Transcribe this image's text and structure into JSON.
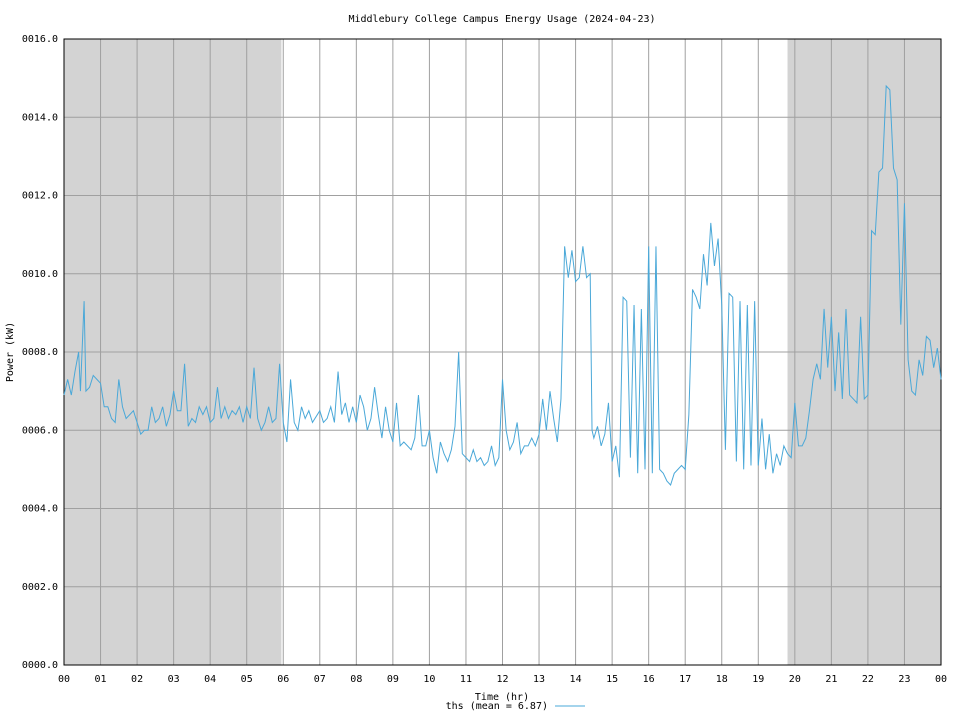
{
  "chart_data": {
    "type": "line",
    "title": "Middlebury College Campus Energy Usage (2024-04-23)",
    "x_label": "Time (hr)",
    "y_label": "Power (kW)",
    "xlim": [
      0,
      24
    ],
    "ylim": [
      0,
      16
    ],
    "grid": true,
    "legend": "bottom",
    "shaded_regions": [
      [
        0,
        5.95
      ],
      [
        19.8,
        24
      ]
    ],
    "shade_color": "#d3d3d3",
    "xticks": [
      {
        "value": 0,
        "label": "00"
      },
      {
        "value": 1,
        "label": "01"
      },
      {
        "value": 2,
        "label": "02"
      },
      {
        "value": 3,
        "label": "03"
      },
      {
        "value": 4,
        "label": "04"
      },
      {
        "value": 5,
        "label": "05"
      },
      {
        "value": 6,
        "label": "06"
      },
      {
        "value": 7,
        "label": "07"
      },
      {
        "value": 8,
        "label": "08"
      },
      {
        "value": 9,
        "label": "09"
      },
      10,
      11,
      12,
      13,
      14,
      15,
      16,
      17,
      18,
      19,
      20,
      21,
      22,
      23,
      {
        "value": 24,
        "label": "00"
      }
    ],
    "yticks": [
      {
        "value": 0,
        "label": "0000.0"
      },
      {
        "value": 2,
        "label": "0002.0"
      },
      {
        "value": 4,
        "label": "0004.0"
      },
      {
        "value": 6,
        "label": "0006.0"
      },
      {
        "value": 8,
        "label": "0008.0"
      },
      {
        "value": 10,
        "label": "0010.0"
      },
      {
        "value": 12,
        "label": "0012.0"
      },
      {
        "value": 14,
        "label": "0014.0"
      },
      {
        "value": 16,
        "label": "0016.0"
      }
    ],
    "x": [
      0,
      0.1,
      0.2,
      0.3,
      0.4,
      0.45,
      0.55,
      0.6,
      0.7,
      0.8,
      0.9,
      1.0,
      1.1,
      1.2,
      1.3,
      1.4,
      1.5,
      1.6,
      1.7,
      1.8,
      1.9,
      2.0,
      2.1,
      2.2,
      2.3,
      2.4,
      2.5,
      2.6,
      2.7,
      2.8,
      2.9,
      3.0,
      3.1,
      3.2,
      3.3,
      3.4,
      3.5,
      3.6,
      3.7,
      3.8,
      3.9,
      4.0,
      4.1,
      4.2,
      4.3,
      4.4,
      4.5,
      4.6,
      4.7,
      4.8,
      4.9,
      5.0,
      5.1,
      5.2,
      5.3,
      5.4,
      5.5,
      5.6,
      5.7,
      5.8,
      5.9,
      6.0,
      6.1,
      6.2,
      6.3,
      6.4,
      6.5,
      6.6,
      6.7,
      6.8,
      7.0,
      7.1,
      7.2,
      7.3,
      7.4,
      7.5,
      7.6,
      7.7,
      7.8,
      7.9,
      8.0,
      8.1,
      8.2,
      8.3,
      8.4,
      8.5,
      8.6,
      8.7,
      8.8,
      8.9,
      9.0,
      9.1,
      9.2,
      9.3,
      9.4,
      9.5,
      9.6,
      9.7,
      9.8,
      9.9,
      10.0,
      10.1,
      10.2,
      10.3,
      10.4,
      10.5,
      10.6,
      10.7,
      10.8,
      10.9,
      11.0,
      11.1,
      11.2,
      11.3,
      11.4,
      11.5,
      11.6,
      11.7,
      11.8,
      11.9,
      12.0,
      12.1,
      12.2,
      12.3,
      12.4,
      12.5,
      12.6,
      12.7,
      12.8,
      12.9,
      13.0,
      13.1,
      13.2,
      13.3,
      13.4,
      13.5,
      13.6,
      13.7,
      13.8,
      13.9,
      14.0,
      14.1,
      14.2,
      14.3,
      14.4,
      14.45,
      14.5,
      14.6,
      14.7,
      14.8,
      14.9,
      15.0,
      15.1,
      15.2,
      15.3,
      15.4,
      15.5,
      15.6,
      15.7,
      15.8,
      15.9,
      16.0,
      16.1,
      16.2,
      16.3,
      16.4,
      16.5,
      16.6,
      16.7,
      16.8,
      16.9,
      17.0,
      17.1,
      17.2,
      17.3,
      17.4,
      17.5,
      17.6,
      17.7,
      17.8,
      17.9,
      18.0,
      18.1,
      18.2,
      18.3,
      18.4,
      18.5,
      18.6,
      18.7,
      18.8,
      18.9,
      19.0,
      19.1,
      19.2,
      19.3,
      19.4,
      19.5,
      19.6,
      19.7,
      19.8,
      19.9,
      20.0,
      20.1,
      20.2,
      20.3,
      20.4,
      20.5,
      20.6,
      20.7,
      20.8,
      20.9,
      21.0,
      21.1,
      21.2,
      21.3,
      21.4,
      21.5,
      21.6,
      21.7,
      21.8,
      21.9,
      22.0,
      22.1,
      22.2,
      22.3,
      22.4,
      22.5,
      22.6,
      22.7,
      22.8,
      22.9,
      23.0,
      23.1,
      23.2,
      23.3,
      23.4,
      23.5,
      23.6,
      23.7,
      23.8,
      23.9,
      24.0
    ],
    "series": [
      {
        "name": "ths (mean = 6.87)",
        "color": "#4aa8d8",
        "values": [
          6.9,
          7.3,
          6.9,
          7.5,
          8.0,
          7.0,
          9.3,
          7.0,
          7.1,
          7.4,
          7.3,
          7.2,
          6.6,
          6.6,
          6.3,
          6.2,
          7.3,
          6.6,
          6.3,
          6.4,
          6.5,
          6.2,
          5.9,
          6.0,
          6.0,
          6.6,
          6.2,
          6.3,
          6.6,
          6.1,
          6.4,
          7.0,
          6.5,
          6.5,
          7.7,
          6.1,
          6.3,
          6.2,
          6.6,
          6.4,
          6.6,
          6.2,
          6.3,
          7.1,
          6.3,
          6.6,
          6.3,
          6.5,
          6.4,
          6.6,
          6.2,
          6.6,
          6.3,
          7.6,
          6.3,
          6.0,
          6.2,
          6.6,
          6.2,
          6.3,
          7.7,
          6.2,
          5.7,
          7.3,
          6.2,
          6.0,
          6.6,
          6.3,
          6.5,
          6.2,
          6.5,
          6.2,
          6.3,
          6.6,
          6.2,
          7.5,
          6.4,
          6.7,
          6.2,
          6.6,
          6.2,
          6.9,
          6.6,
          6.0,
          6.3,
          7.1,
          6.4,
          5.8,
          6.6,
          6.0,
          5.7,
          6.7,
          5.6,
          5.7,
          5.6,
          5.5,
          5.8,
          6.9,
          5.6,
          5.6,
          6.0,
          5.3,
          4.9,
          5.7,
          5.4,
          5.2,
          5.5,
          6.1,
          8.0,
          5.4,
          5.3,
          5.2,
          5.5,
          5.2,
          5.3,
          5.1,
          5.2,
          5.6,
          5.1,
          5.3,
          7.3,
          6.0,
          5.5,
          5.7,
          6.2,
          5.4,
          5.6,
          5.6,
          5.8,
          5.6,
          5.9,
          6.8,
          6.0,
          7.0,
          6.3,
          5.7,
          6.8,
          10.7,
          9.9,
          10.6,
          9.8,
          9.9,
          10.7,
          9.9,
          10.0,
          6.0,
          5.8,
          6.1,
          5.6,
          5.9,
          6.7,
          5.2,
          5.6,
          4.8,
          9.4,
          9.3,
          5.3,
          9.2,
          4.9,
          9.1,
          5.0,
          10.7,
          4.9,
          10.7,
          5.0,
          4.9,
          4.7,
          4.6,
          4.9,
          5.0,
          5.1,
          5.0,
          6.4,
          9.6,
          9.4,
          9.1,
          10.5,
          9.7,
          11.3,
          10.2,
          10.9,
          9.2,
          5.5,
          9.5,
          9.4,
          5.2,
          9.3,
          5.0,
          9.2,
          5.1,
          9.3,
          5.1,
          6.3,
          5.0,
          5.9,
          4.9,
          5.4,
          5.1,
          5.6,
          5.4,
          5.3,
          6.7,
          5.6,
          5.6,
          5.8,
          6.5,
          7.3,
          7.7,
          7.3,
          9.1,
          7.6,
          8.9,
          7.0,
          8.5,
          6.8,
          9.1,
          6.9,
          6.8,
          6.7,
          8.9,
          6.8,
          6.9,
          11.1,
          11.0,
          12.6,
          12.7,
          14.8,
          14.7,
          12.7,
          12.4,
          8.7,
          11.8,
          7.8,
          7.0,
          6.9,
          7.8,
          7.4,
          8.4,
          8.3,
          7.6,
          8.1,
          7.3
        ]
      }
    ]
  }
}
